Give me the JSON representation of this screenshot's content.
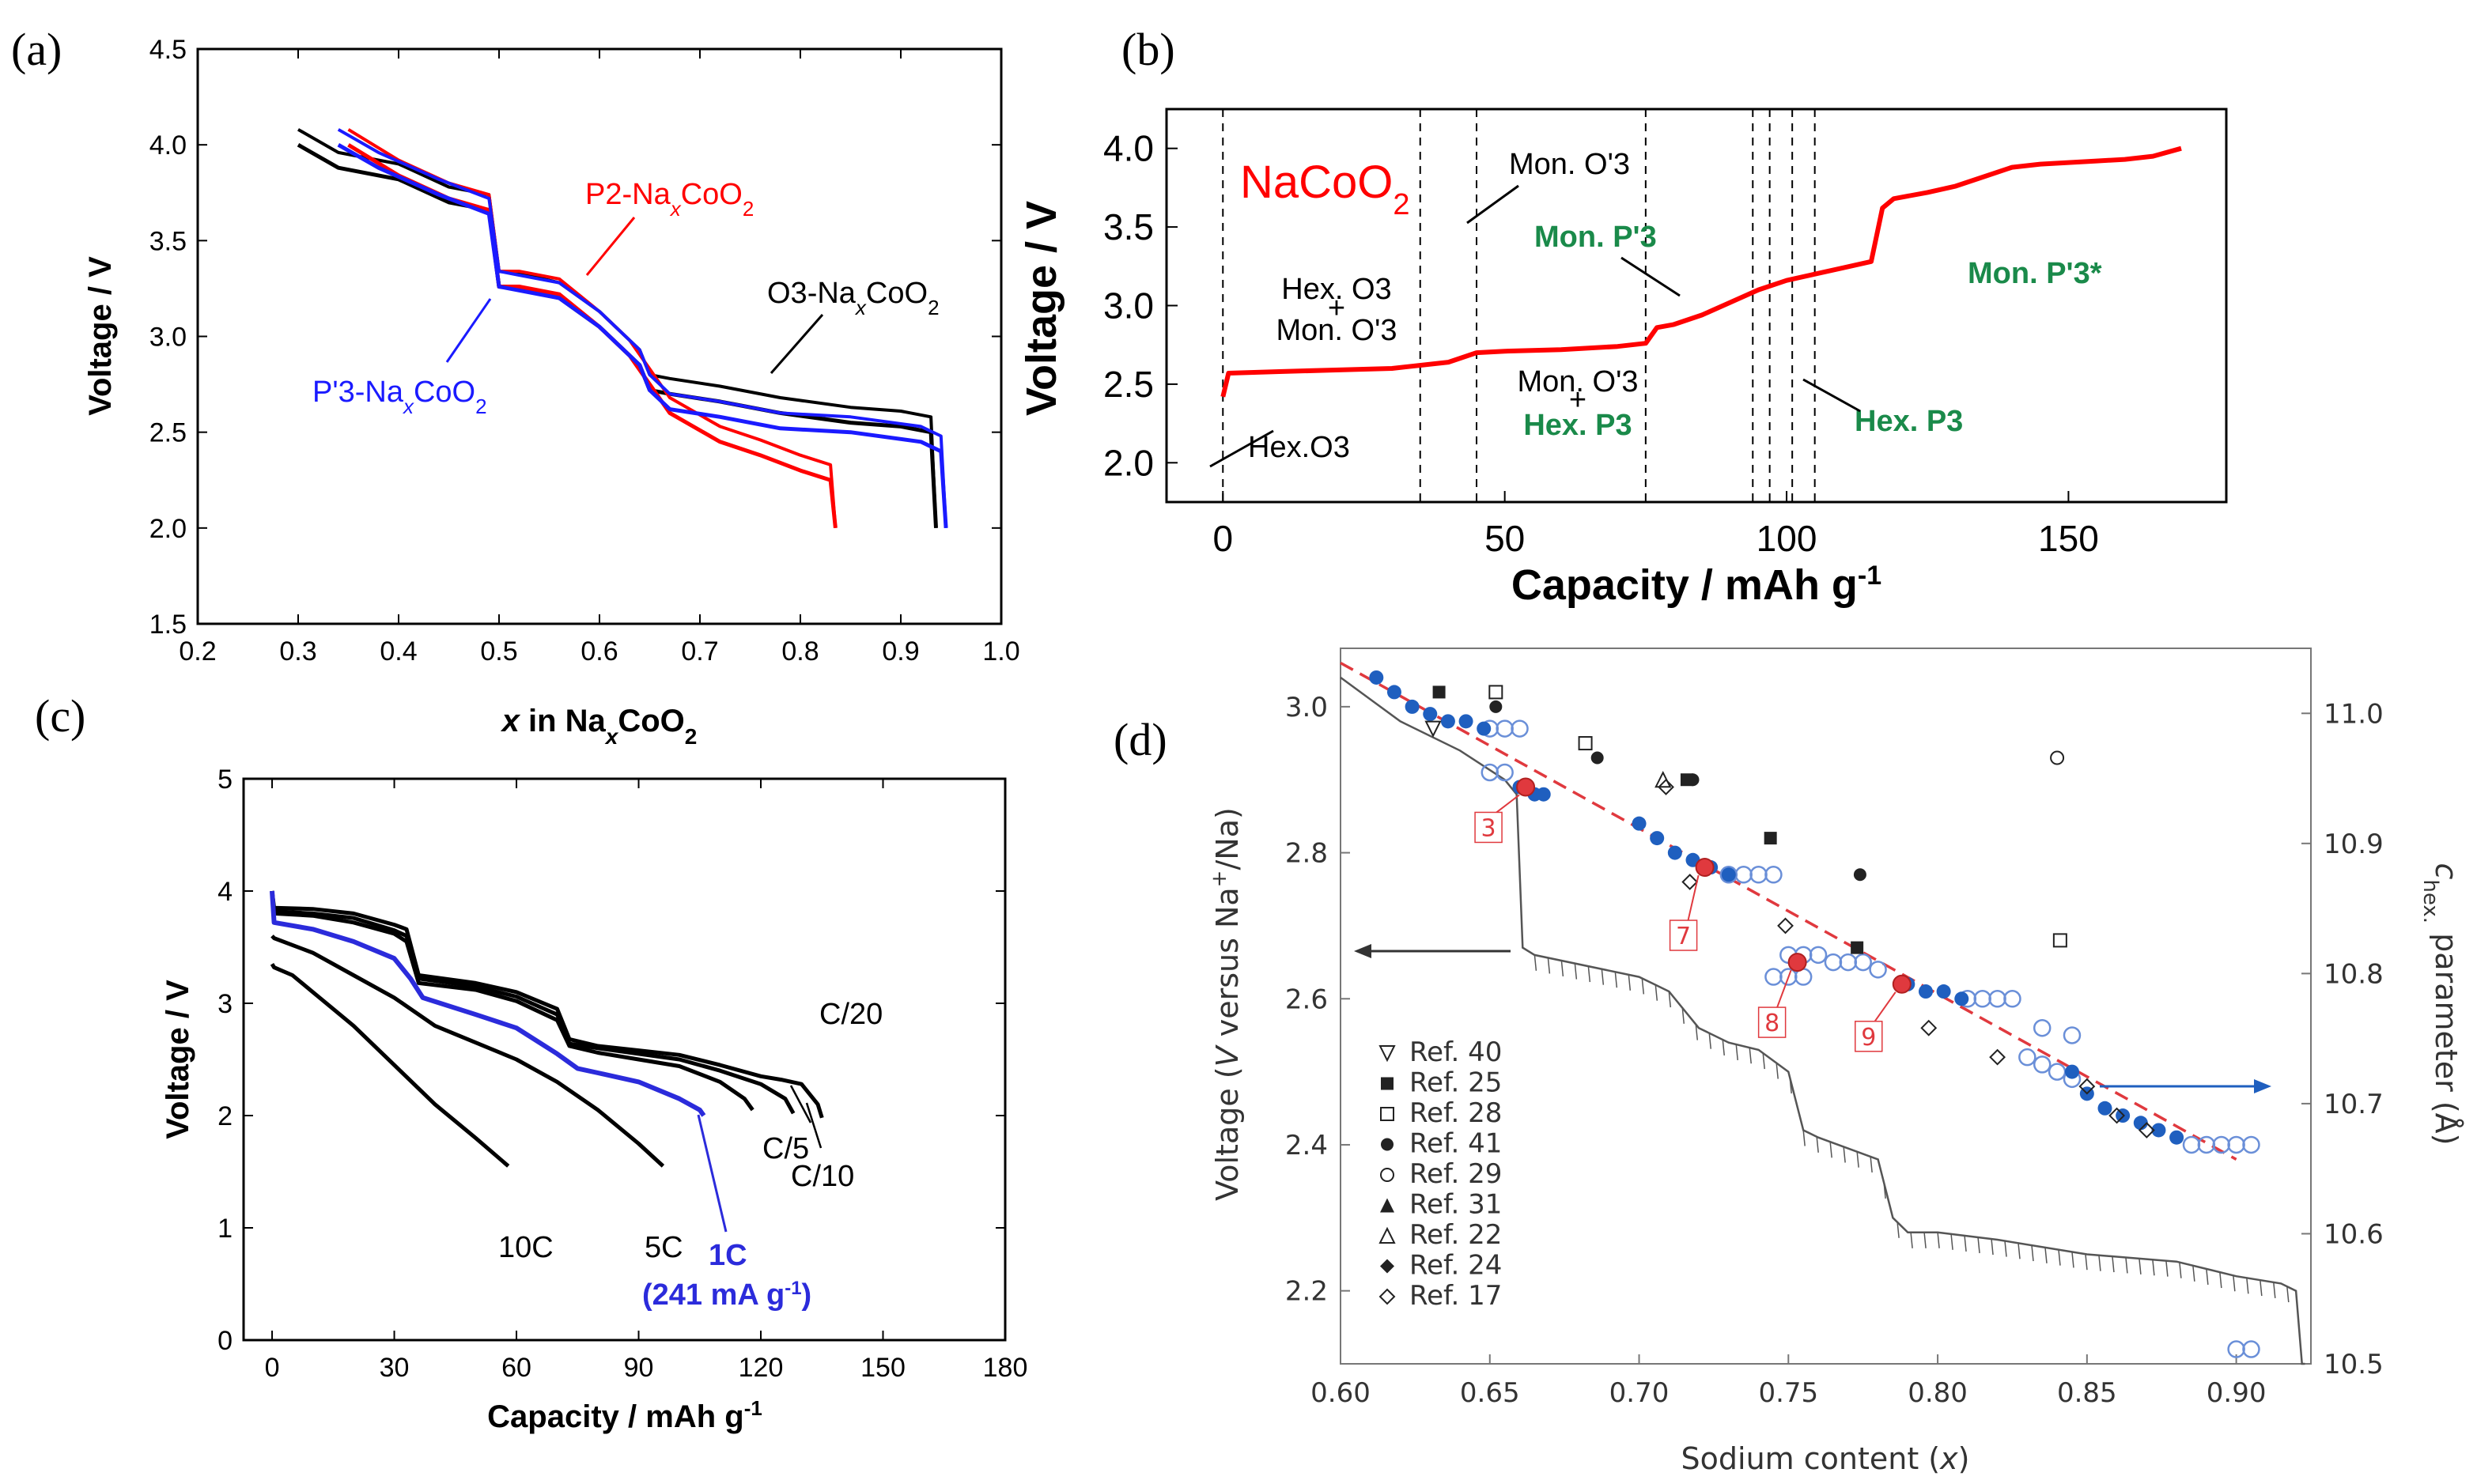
{
  "chart_data": [
    {
      "panel": "(a)",
      "type": "line",
      "xlabel": "x in NaxCoO2",
      "ylabel": "Voltage / V",
      "xlim": [
        0.2,
        1.0
      ],
      "ylim": [
        1.5,
        4.5
      ],
      "xticks": [
        "0.2",
        "0.3",
        "0.4",
        "0.5",
        "0.6",
        "0.7",
        "0.8",
        "0.9",
        "1.0"
      ],
      "yticks": [
        "1.5",
        "2.0",
        "2.5",
        "3.0",
        "3.5",
        "4.0",
        "4.5"
      ],
      "labels": {
        "p2": "P2-Na",
        "o3": "O3-Na",
        "p3": "P'3-Na",
        "sub_x": "x",
        "co": "CoO",
        "sub_2": "2",
        "xaxis_pre": "x",
        "xaxis_mid": " in Na",
        "xaxis_sub": "x",
        "xaxis_post": "CoO",
        "xaxis_sub2": "2"
      },
      "series": [
        {
          "name": "O3-NaxCoO2",
          "color": "#000000",
          "x": [
            0.3,
            0.34,
            0.4,
            0.45,
            0.49,
            0.5,
            0.52,
            0.56,
            0.6,
            0.64,
            0.65,
            0.67,
            0.72,
            0.78,
            0.85,
            0.9,
            0.93,
            0.935
          ],
          "y": [
            4.0,
            3.88,
            3.82,
            3.7,
            3.66,
            3.26,
            3.25,
            3.2,
            3.05,
            2.85,
            2.72,
            2.7,
            2.66,
            2.6,
            2.55,
            2.53,
            2.5,
            2.0
          ]
        },
        {
          "name": "P2-NaxCoO2",
          "color": "#ff0000",
          "x": [
            0.35,
            0.4,
            0.45,
            0.49,
            0.5,
            0.52,
            0.56,
            0.6,
            0.63,
            0.65,
            0.67,
            0.72,
            0.76,
            0.8,
            0.83,
            0.835
          ],
          "y": [
            4.0,
            3.84,
            3.72,
            3.66,
            3.26,
            3.26,
            3.22,
            3.05,
            2.9,
            2.75,
            2.6,
            2.45,
            2.38,
            2.3,
            2.25,
            2.0
          ]
        },
        {
          "name": "P'3-NaxCoO2",
          "color": "#1a1aff",
          "x": [
            0.34,
            0.38,
            0.44,
            0.49,
            0.5,
            0.52,
            0.56,
            0.6,
            0.64,
            0.65,
            0.67,
            0.72,
            0.78,
            0.85,
            0.92,
            0.94,
            0.945
          ],
          "y": [
            4.0,
            3.88,
            3.74,
            3.64,
            3.26,
            3.24,
            3.2,
            3.05,
            2.85,
            2.72,
            2.62,
            2.58,
            2.52,
            2.5,
            2.45,
            2.4,
            2.0
          ]
        }
      ]
    },
    {
      "panel": "(b)",
      "type": "line",
      "title_pre": "NaCoO",
      "title_sub": "2",
      "xlabel_pre": "Capacity / mAh g",
      "xlabel_sup": "-1",
      "ylabel": "Voltage / V",
      "xlim": [
        -10,
        178
      ],
      "ylim": [
        1.75,
        4.25
      ],
      "xticks": [
        "0",
        "50",
        "100",
        "150"
      ],
      "yticks": [
        "2.0",
        "2.5",
        "3.0",
        "3.5",
        "4.0"
      ],
      "phase_boundaries": [
        0,
        35,
        45,
        75,
        94,
        97,
        101,
        105
      ],
      "annotations": {
        "hexo3": "Hex.O3",
        "hexo3_mon1": "Hex. O3",
        "plus": "+",
        "hexo3_mon2": "Mon. O'3",
        "mono3": "Mon. O'3",
        "monp3": "Mon. P'3",
        "mono3_hexp3_1": "Mon. O'3",
        "mono3_hexp3_2": "Hex. P3",
        "hexp3": "Hex. P3",
        "monp3star": "Mon. P'3*"
      },
      "colors": {
        "curve": "#ff0000",
        "green": "#1a8a4a"
      },
      "series": [
        {
          "name": "NaCoO2",
          "x": [
            0,
            1,
            10,
            20,
            30,
            40,
            45,
            50,
            60,
            70,
            75,
            77,
            80,
            85,
            90,
            95,
            100,
            105,
            110,
            115,
            117,
            119,
            125,
            130,
            135,
            140,
            145,
            150,
            155,
            160,
            165,
            170
          ],
          "y": [
            2.42,
            2.57,
            2.58,
            2.59,
            2.6,
            2.64,
            2.7,
            2.71,
            2.72,
            2.74,
            2.76,
            2.86,
            2.88,
            2.94,
            3.02,
            3.1,
            3.16,
            3.2,
            3.24,
            3.28,
            3.62,
            3.68,
            3.72,
            3.76,
            3.82,
            3.88,
            3.9,
            3.91,
            3.92,
            3.93,
            3.95,
            4.0
          ]
        }
      ]
    },
    {
      "panel": "(c)",
      "type": "line",
      "xlabel_pre": "Capacity / mAh g",
      "xlabel_sup": "-1",
      "ylabel": "Voltage / V",
      "xlim": [
        -7,
        180
      ],
      "ylim": [
        0,
        5
      ],
      "xticks": [
        "0",
        "30",
        "60",
        "90",
        "120",
        "150",
        "180"
      ],
      "yticks": [
        "0",
        "1",
        "2",
        "3",
        "4",
        "5"
      ],
      "rate_labels": {
        "c20": "C/20",
        "c5": "C/5",
        "c10": "C/10",
        "c10c": "10C",
        "c5c": "5C",
        "c1": "1C",
        "c1sub_pre": "(241 mA g",
        "c1sub_sup": "-1",
        "c1sub_post": ")"
      },
      "colors": {
        "black": "#000000",
        "blue": "#2b2bdb"
      },
      "series": [
        {
          "name": "C/20",
          "color": "#000000",
          "x": [
            0,
            0.5,
            10,
            20,
            30,
            33,
            36,
            50,
            60,
            70,
            73,
            80,
            90,
            100,
            110,
            120,
            125,
            130,
            134,
            135
          ],
          "y": [
            4.0,
            3.85,
            3.84,
            3.8,
            3.7,
            3.66,
            3.25,
            3.18,
            3.1,
            2.95,
            2.68,
            2.62,
            2.58,
            2.54,
            2.45,
            2.35,
            2.32,
            2.28,
            2.1,
            1.98
          ]
        },
        {
          "name": "C/10",
          "color": "#000000",
          "x": [
            0,
            0.5,
            10,
            20,
            30,
            33,
            36,
            50,
            60,
            70,
            73,
            80,
            90,
            100,
            110,
            120,
            126,
            128
          ],
          "y": [
            4.0,
            3.82,
            3.8,
            3.76,
            3.65,
            3.6,
            3.22,
            3.15,
            3.06,
            2.9,
            2.64,
            2.6,
            2.55,
            2.5,
            2.4,
            2.28,
            2.15,
            2.02
          ]
        },
        {
          "name": "C/5",
          "color": "#000000",
          "x": [
            0,
            0.5,
            10,
            20,
            30,
            33,
            36,
            50,
            60,
            70,
            73,
            80,
            90,
            100,
            110,
            116,
            118
          ],
          "y": [
            4.0,
            3.8,
            3.78,
            3.72,
            3.62,
            3.55,
            3.18,
            3.12,
            3.02,
            2.85,
            2.62,
            2.56,
            2.5,
            2.44,
            2.3,
            2.15,
            2.05
          ]
        },
        {
          "name": "1C",
          "color": "#2b2bdb",
          "x": [
            0,
            0.5,
            10,
            20,
            30,
            34,
            37,
            50,
            60,
            70,
            75,
            80,
            90,
            100,
            105,
            106
          ],
          "y": [
            4.0,
            3.72,
            3.66,
            3.55,
            3.4,
            3.22,
            3.05,
            2.9,
            2.78,
            2.55,
            2.42,
            2.38,
            2.3,
            2.15,
            2.05,
            2.0
          ]
        },
        {
          "name": "5C",
          "color": "#000000",
          "x": [
            0,
            0.5,
            10,
            20,
            30,
            40,
            50,
            60,
            70,
            80,
            90,
            96
          ],
          "y": [
            3.6,
            3.58,
            3.45,
            3.25,
            3.05,
            2.8,
            2.65,
            2.5,
            2.3,
            2.05,
            1.75,
            1.55
          ]
        },
        {
          "name": "10C",
          "color": "#000000",
          "x": [
            0,
            0.5,
            5,
            10,
            20,
            30,
            40,
            50,
            58
          ],
          "y": [
            3.35,
            3.32,
            3.25,
            3.1,
            2.8,
            2.45,
            2.1,
            1.8,
            1.55
          ]
        }
      ]
    },
    {
      "panel": "(d)",
      "type": "scatter",
      "xlabel_pre": "Sodium content (",
      "xlabel_var": "x",
      "xlabel_post": ")",
      "ylabel_pre": "Voltage (",
      "ylabel_var": "V",
      "ylabel_mid": " versus Na",
      "ylabel_sup": "+",
      "ylabel_post": "/Na)",
      "y2label_pre": "c",
      "y2label_sub": "hex.",
      "y2label_post": " parameter (Å)",
      "xlim": [
        0.6,
        0.925
      ],
      "ylim": [
        2.1,
        3.08
      ],
      "y2lim": [
        10.5,
        11.05
      ],
      "xticks": [
        "0.60",
        "0.65",
        "0.70",
        "0.75",
        "0.80",
        "0.85",
        "0.90"
      ],
      "yticks": [
        "2.2",
        "2.4",
        "2.6",
        "2.8",
        "3.0"
      ],
      "y2ticks": [
        "10.5",
        "10.6",
        "10.7",
        "10.8",
        "10.9",
        "11.0"
      ],
      "tags": [
        "3",
        "7",
        "8",
        "9"
      ],
      "legend": [
        "Ref. 40",
        "Ref. 25",
        "Ref. 28",
        "Ref. 41",
        "Ref. 29",
        "Ref. 31",
        "Ref. 22",
        "Ref. 24",
        "Ref. 17"
      ],
      "colors": {
        "fit": "#e0393e",
        "blue": "#1f5fbf",
        "open": "#6a8fd8",
        "gray": "#555555"
      },
      "fit_line": {
        "x": [
          0.6,
          0.9
        ],
        "y": [
          3.06,
          2.38
        ]
      },
      "voltage_profile": {
        "x": [
          0.6,
          0.62,
          0.64,
          0.655,
          0.659,
          0.661,
          0.665,
          0.7,
          0.705,
          0.71,
          0.72,
          0.73,
          0.74,
          0.75,
          0.755,
          0.76,
          0.78,
          0.785,
          0.79,
          0.8,
          0.82,
          0.85,
          0.88,
          0.9,
          0.915,
          0.92,
          0.922,
          0.923
        ],
        "y": [
          3.04,
          2.98,
          2.94,
          2.9,
          2.88,
          2.67,
          2.66,
          2.63,
          2.62,
          2.61,
          2.56,
          2.54,
          2.53,
          2.5,
          2.42,
          2.41,
          2.38,
          2.3,
          2.28,
          2.28,
          2.27,
          2.25,
          2.24,
          2.22,
          2.21,
          2.2,
          2.1,
          2.1
        ]
      },
      "filled_blue": {
        "x": [
          0.612,
          0.618,
          0.624,
          0.63,
          0.636,
          0.642,
          0.648,
          0.66,
          0.665,
          0.668,
          0.7,
          0.706,
          0.712,
          0.718,
          0.724,
          0.73,
          0.79,
          0.796,
          0.802,
          0.808,
          0.845,
          0.85,
          0.856,
          0.862,
          0.868,
          0.874,
          0.88
        ],
        "y": [
          3.04,
          3.02,
          3.0,
          2.99,
          2.98,
          2.98,
          2.97,
          2.89,
          2.88,
          2.88,
          2.84,
          2.82,
          2.8,
          2.79,
          2.78,
          2.77,
          2.62,
          2.61,
          2.61,
          2.6,
          2.5,
          2.47,
          2.45,
          2.44,
          2.43,
          2.42,
          2.41
        ]
      },
      "open_circles": {
        "x": [
          0.65,
          0.655,
          0.66,
          0.73,
          0.735,
          0.74,
          0.745,
          0.75,
          0.755,
          0.76,
          0.765,
          0.77,
          0.775,
          0.78,
          0.81,
          0.815,
          0.82,
          0.825,
          0.83,
          0.835,
          0.84,
          0.845,
          0.885,
          0.89,
          0.895,
          0.9,
          0.905,
          0.655,
          0.65,
          0.745,
          0.75,
          0.755,
          0.835,
          0.845,
          0.9,
          0.905
        ],
        "y": [
          2.97,
          2.97,
          2.97,
          2.77,
          2.77,
          2.77,
          2.77,
          2.66,
          2.66,
          2.66,
          2.65,
          2.65,
          2.65,
          2.64,
          2.6,
          2.6,
          2.6,
          2.6,
          2.52,
          2.51,
          2.5,
          2.49,
          2.4,
          2.4,
          2.4,
          2.4,
          2.4,
          2.91,
          2.91,
          2.63,
          2.63,
          2.63,
          2.56,
          2.55,
          2.12,
          2.12
        ]
      },
      "red_points": {
        "x": [
          0.662,
          0.722,
          0.753,
          0.788
        ],
        "y": [
          2.89,
          2.78,
          2.65,
          2.62
        ]
      },
      "ref_markers": [
        {
          "ref": "Ref. 40",
          "x": 0.631,
          "y": 2.97
        },
        {
          "ref": "Ref. 25",
          "x": 0.633,
          "y": 3.02
        },
        {
          "ref": "Ref. 25",
          "x": 0.716,
          "y": 2.9
        },
        {
          "ref": "Ref. 25",
          "x": 0.744,
          "y": 2.82
        },
        {
          "ref": "Ref. 25",
          "x": 0.773,
          "y": 2.67
        },
        {
          "ref": "Ref. 28",
          "x": 0.652,
          "y": 3.02
        },
        {
          "ref": "Ref. 28",
          "x": 0.682,
          "y": 2.95
        },
        {
          "ref": "Ref. 28",
          "x": 0.841,
          "y": 2.68
        },
        {
          "ref": "Ref. 41",
          "x": 0.652,
          "y": 3.0
        },
        {
          "ref": "Ref. 41",
          "x": 0.686,
          "y": 2.93
        },
        {
          "ref": "Ref. 41",
          "x": 0.718,
          "y": 2.9
        },
        {
          "ref": "Ref. 41",
          "x": 0.774,
          "y": 2.77
        },
        {
          "ref": "Ref. 29",
          "x": 0.84,
          "y": 2.93
        },
        {
          "ref": "Ref. 22",
          "x": 0.708,
          "y": 2.9
        },
        {
          "ref": "Ref. 17",
          "x": 0.709,
          "y": 2.89
        },
        {
          "ref": "Ref. 17",
          "x": 0.717,
          "y": 2.76
        },
        {
          "ref": "Ref. 17",
          "x": 0.749,
          "y": 2.7
        },
        {
          "ref": "Ref. 17",
          "x": 0.797,
          "y": 2.56
        },
        {
          "ref": "Ref. 17",
          "x": 0.82,
          "y": 2.52
        },
        {
          "ref": "Ref. 17",
          "x": 0.85,
          "y": 2.48
        },
        {
          "ref": "Ref. 17",
          "x": 0.86,
          "y": 2.44
        },
        {
          "ref": "Ref. 17",
          "x": 0.87,
          "y": 2.42
        }
      ]
    }
  ],
  "panel_labels": [
    "(a)",
    "(b)",
    "(c)",
    "(d)"
  ]
}
